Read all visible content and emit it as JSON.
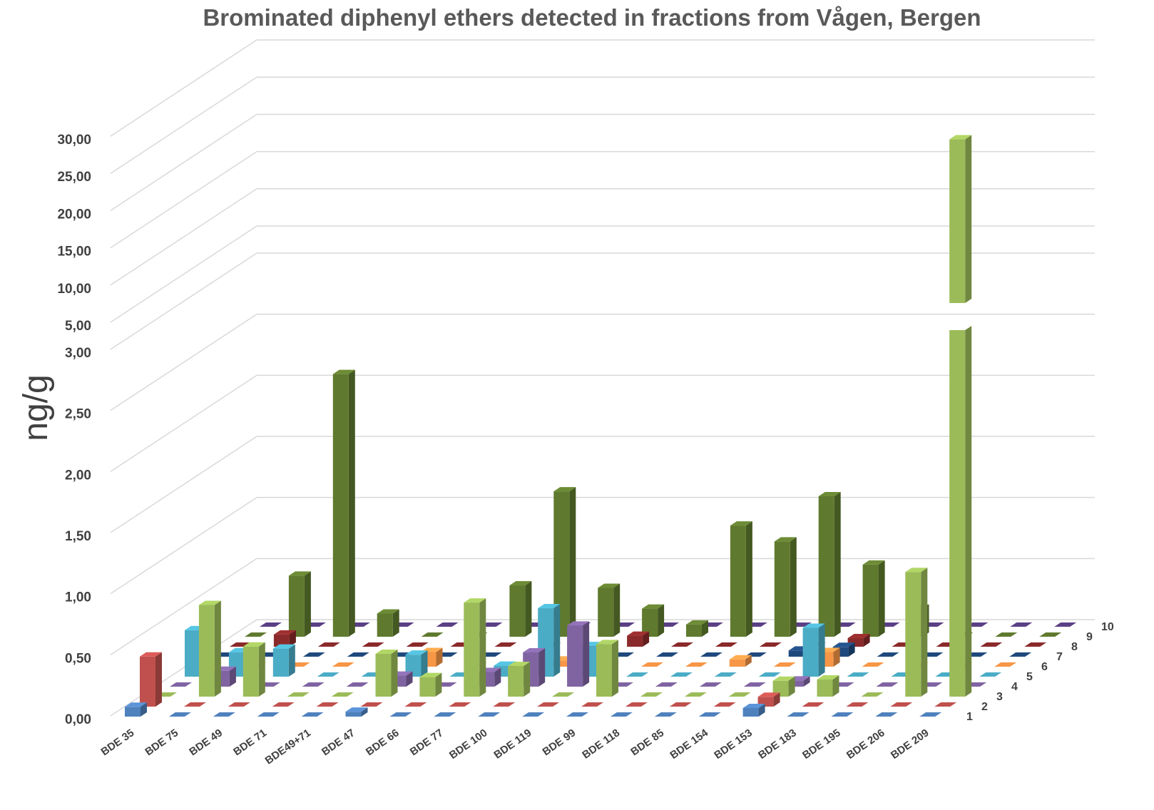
{
  "chart_data": {
    "type": "bar3d",
    "title": "Brominated diphenyl ethers detected in fractions from Vågen, Bergen",
    "ylabel": "ng/g",
    "categories": [
      "BDE 35",
      "BDE 75",
      "BDE 49",
      "BDE 71",
      "BDE49+71",
      "BDE 47",
      "BDE 66",
      "BDE 77",
      "BDE 100",
      "BDE 119",
      "BDE 99",
      "BDE 118",
      "BDE 85",
      "BDE 154",
      "BDE 153",
      "BDE 183",
      "BDE 195",
      "BDE 206",
      "BDE 209"
    ],
    "series": [
      {
        "name": "1",
        "color": "#4f81bd",
        "values": [
          0.08,
          0,
          0,
          0,
          0,
          0.04,
          0,
          0,
          0,
          0,
          0,
          0,
          0,
          0,
          0.07,
          0,
          0,
          0,
          0
        ]
      },
      {
        "name": "2",
        "color": "#c0504d",
        "values": [
          0.41,
          0,
          0,
          0,
          0,
          0,
          0,
          0,
          0,
          0,
          0,
          0,
          0,
          0,
          0.08,
          0,
          0,
          0,
          0
        ]
      },
      {
        "name": "3",
        "color": "#9bbb59",
        "values": [
          0,
          0.75,
          0.41,
          0,
          0,
          0.35,
          0.16,
          0.77,
          0.25,
          0,
          0.43,
          0,
          0,
          0,
          0.13,
          0.14,
          0,
          1.02,
          27
        ]
      },
      {
        "name": "4",
        "color": "#8064a2",
        "values": [
          0,
          0.13,
          0,
          0,
          0,
          0.09,
          0,
          0.12,
          0.28,
          0.5,
          0,
          0,
          0,
          0,
          0.05,
          0,
          0,
          0,
          0
        ]
      },
      {
        "name": "5",
        "color": "#4bacc6",
        "values": [
          0.38,
          0.2,
          0.23,
          0,
          0,
          0.18,
          0,
          0.09,
          0.56,
          0.25,
          0,
          0,
          0,
          0,
          0.4,
          0,
          0,
          0,
          0
        ]
      },
      {
        "name": "6",
        "color": "#f79646",
        "values": [
          0,
          0,
          0,
          0,
          0,
          0.12,
          0,
          0,
          0.05,
          0,
          0,
          0,
          0.06,
          0,
          0.12,
          0,
          0,
          0,
          0
        ]
      },
      {
        "name": "7",
        "color": "#1f497d",
        "values": [
          0,
          0,
          0,
          0,
          0,
          0,
          0,
          0,
          0,
          0,
          0,
          0,
          0,
          0.05,
          0.08,
          0,
          0,
          0,
          0
        ]
      },
      {
        "name": "8",
        "color": "#8b2a2a",
        "values": [
          0,
          0.1,
          0,
          0,
          0,
          0,
          0,
          0,
          0,
          0.09,
          0,
          0,
          0,
          0,
          0.07,
          0,
          0,
          0,
          0
        ]
      },
      {
        "name": "9",
        "color": "#5f7a2e",
        "values": [
          0,
          0.5,
          2.15,
          0.19,
          0,
          0,
          0.42,
          1.19,
          0.4,
          0.23,
          0.1,
          0.91,
          0.78,
          1.15,
          0.59,
          0.23,
          0,
          0,
          0
        ]
      },
      {
        "name": "10",
        "color": "#5b3f85",
        "values": [
          0,
          0,
          0,
          0,
          0,
          0,
          0,
          0,
          0,
          0,
          0,
          0,
          0,
          0,
          0,
          0,
          0,
          0,
          0
        ]
      }
    ],
    "ylim": [
      0,
      30
    ],
    "ybreak": [
      3,
      5
    ],
    "yticks": [
      {
        "value": 0,
        "label": "0,00"
      },
      {
        "value": 0.5,
        "label": "0,50"
      },
      {
        "value": 1,
        "label": "1,00"
      },
      {
        "value": 1.5,
        "label": "1,50"
      },
      {
        "value": 2,
        "label": "2,00"
      },
      {
        "value": 2.5,
        "label": "2,50"
      },
      {
        "value": 3,
        "label": "3,00"
      },
      {
        "value": 5,
        "label": "5,00"
      },
      {
        "value": 10,
        "label": "10,00"
      },
      {
        "value": 15,
        "label": "15,00"
      },
      {
        "value": 20,
        "label": "20,00"
      },
      {
        "value": 25,
        "label": "25,00"
      },
      {
        "value": 30,
        "label": "30,00"
      }
    ],
    "grid": true
  }
}
